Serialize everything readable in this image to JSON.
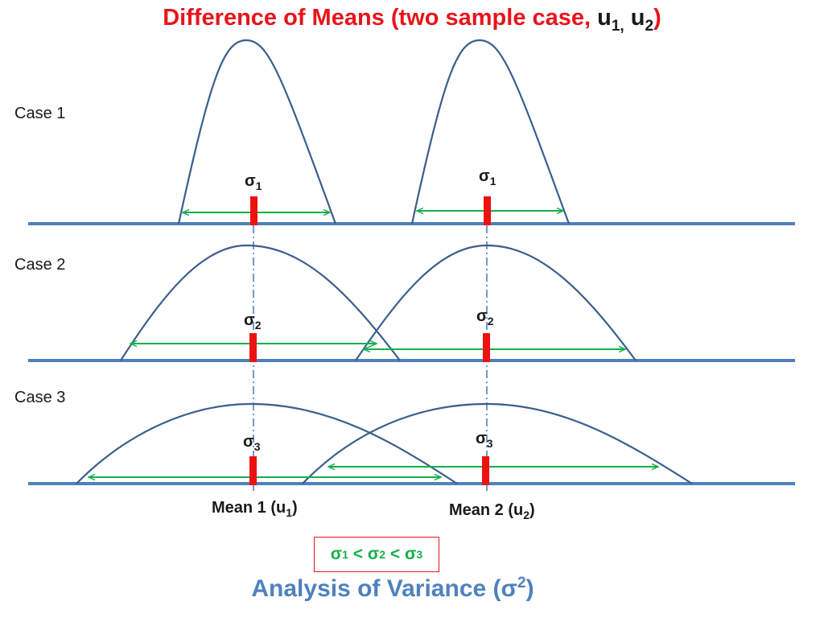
{
  "title": {
    "prefix": "Difference of Means  (two sample case, ",
    "u": "u",
    "sub1": "1,",
    "space": " ",
    "sub2": "2",
    "suffix": ")"
  },
  "cases": [
    {
      "label": "Case 1",
      "sigma": "σ",
      "sigma_sub": "1"
    },
    {
      "label": "Case 2",
      "sigma": "σ",
      "sigma_sub": "2"
    },
    {
      "label": "Case 3",
      "sigma": "σ",
      "sigma_sub": "3"
    }
  ],
  "means": [
    {
      "label": "Mean 1 (u",
      "sub": "1",
      "close": ")"
    },
    {
      "label": "Mean 2 (u",
      "sub": "2",
      "close": ")"
    }
  ],
  "inequality": {
    "s": "σ",
    "sub1": "1",
    "sub2": "2",
    "sub3": "3",
    "op": " < "
  },
  "footer": {
    "text": "Analysis of Variance (σ",
    "sup": "2",
    "close": ")"
  },
  "colors": {
    "title": "#e8141b",
    "curve": "#3b5f8c",
    "axis": "#4f81bd",
    "arrow": "#16b04a",
    "marker": "#ee1111",
    "footer": "#4f81bd"
  }
}
